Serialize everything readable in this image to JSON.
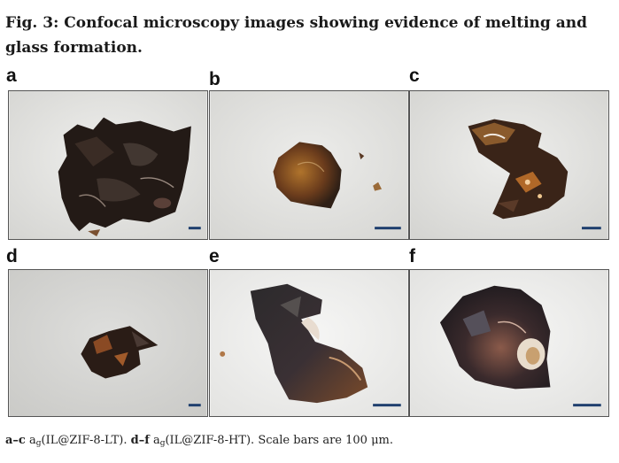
{
  "figure": {
    "title": "Fig. 3: Confocal microscopy images showing evidence of melting and glass formation.",
    "panels": [
      {
        "label": "a"
      },
      {
        "label": "b"
      },
      {
        "label": "c"
      },
      {
        "label": "d"
      },
      {
        "label": "e"
      },
      {
        "label": "f"
      }
    ],
    "caption": {
      "range1": "a–c",
      "sample_prefix1": "a",
      "sample_sub1": "g",
      "sample_name1": "(IL@ZIF-8-LT).",
      "range2": "d–f",
      "sample_prefix2": "a",
      "sample_sub2": "g",
      "sample_name2": "(IL@ZIF-8-HT).",
      "scale_note": "Scale bars are 100 μm."
    },
    "colors": {
      "background_grey": "#d9d9d7",
      "sample_dark": "#2a211c",
      "sample_brown": "#6b3c1c",
      "scale_bar": "#1f3f6e"
    }
  }
}
